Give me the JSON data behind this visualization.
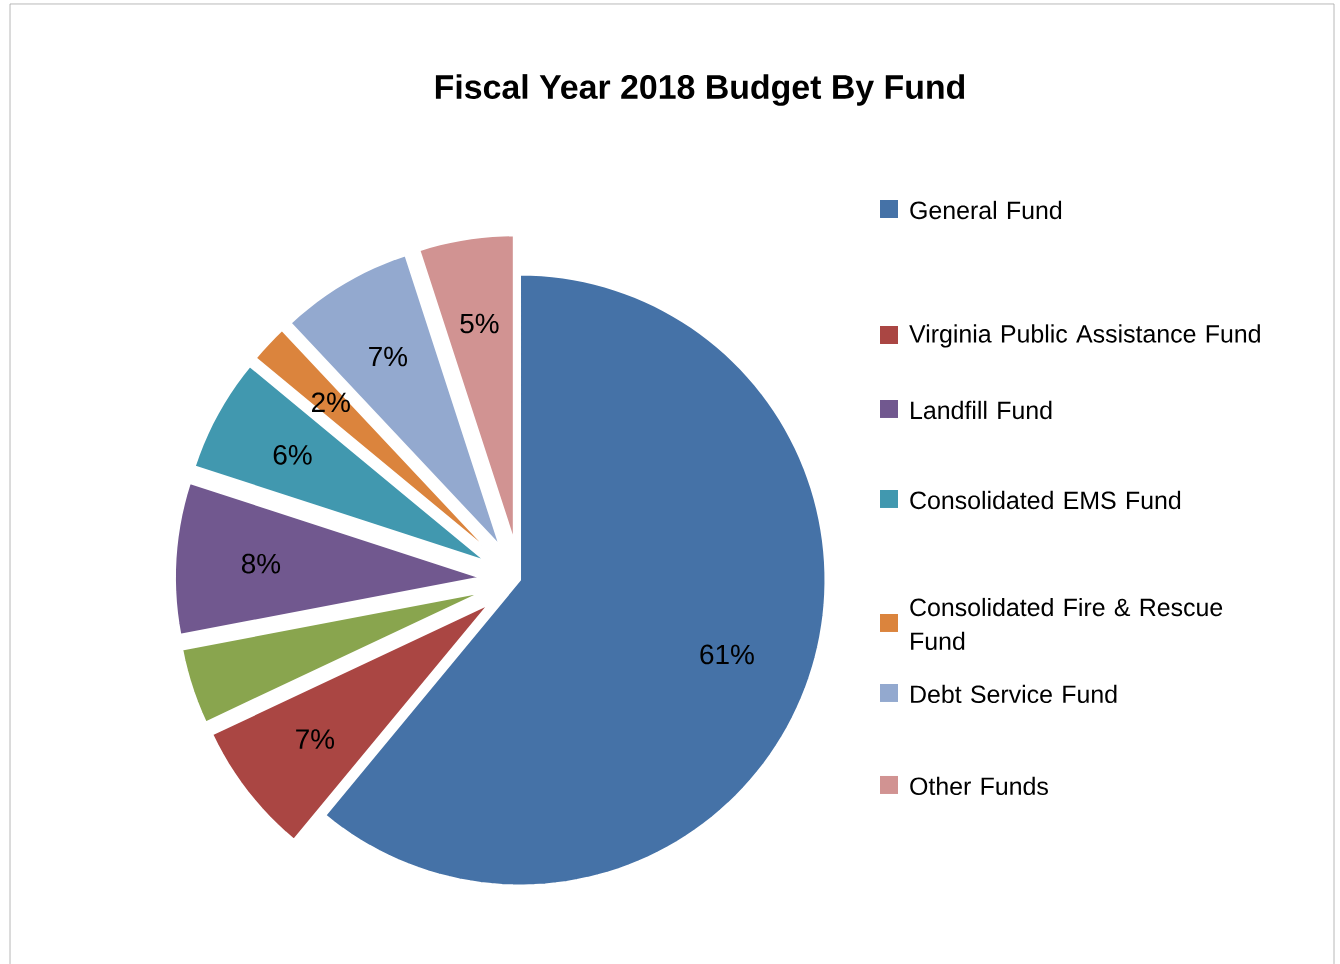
{
  "chart_data": {
    "type": "pie",
    "title": "Fiscal Year 2018 Budget By Fund",
    "categories": [
      "General Fund",
      "Virginia Public Assistance Fund",
      null,
      "Landfill Fund",
      "Consolidated EMS Fund",
      "Consolidated Fire & Rescue Fund",
      "Debt Service Fund",
      "Other Funds"
    ],
    "values": [
      61,
      7,
      4,
      8,
      6,
      2,
      7,
      5
    ],
    "value_labels": [
      "61%",
      "7%",
      null,
      "8%",
      "6%",
      "2%",
      "7%",
      "5%"
    ],
    "colors": [
      "#4572a7",
      "#aa4643",
      "#89a54e",
      "#71588f",
      "#4198af",
      "#db843d",
      "#93a9cf",
      "#d19392"
    ],
    "legend": "right"
  }
}
